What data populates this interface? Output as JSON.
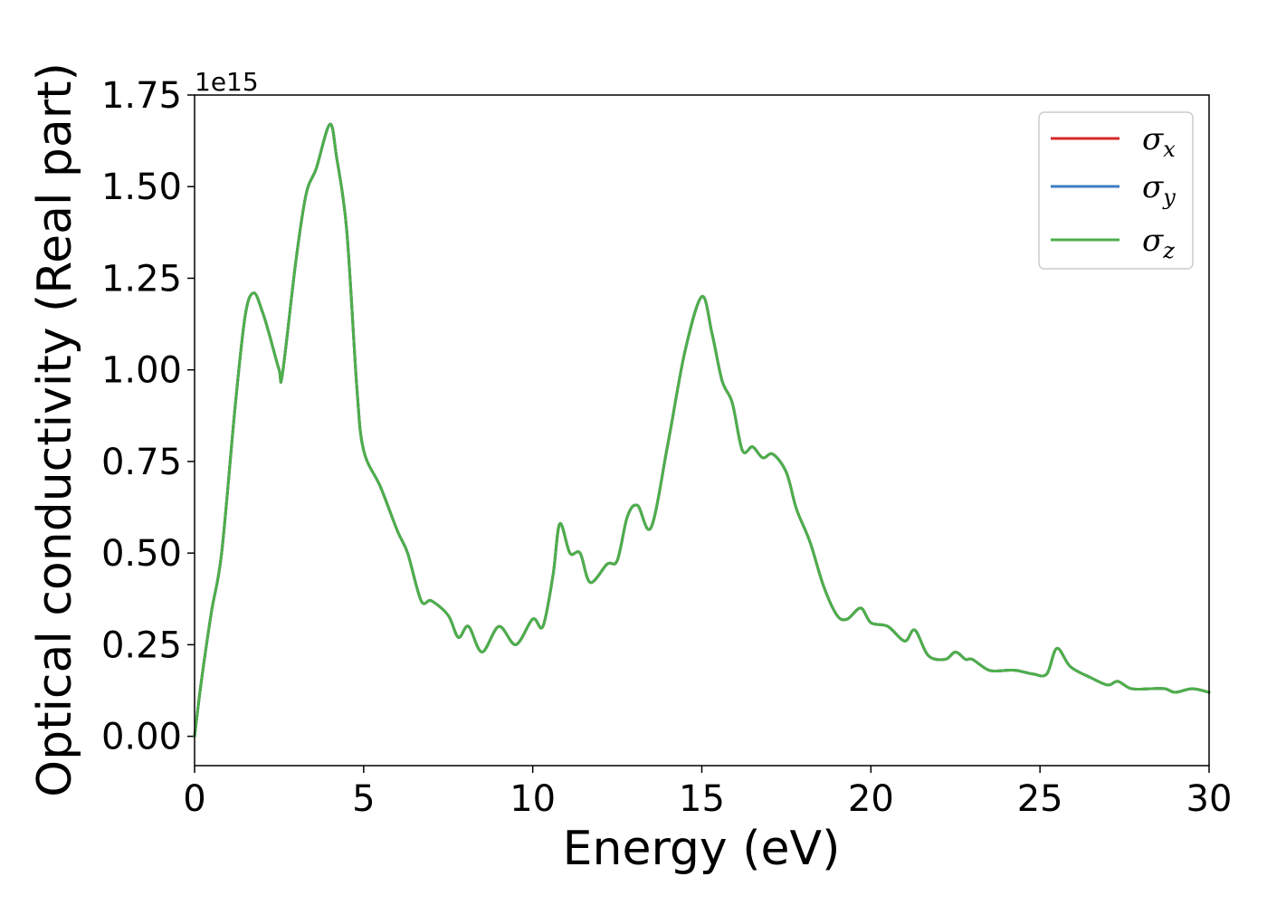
{
  "chart_data": {
    "type": "line",
    "title": "",
    "xlabel": "Energy (eV)",
    "ylabel": "Optical conductivity (Real part)",
    "y_offset_label": "1e15",
    "xlim": [
      0,
      30
    ],
    "ylim": [
      -0.08,
      1.75
    ],
    "xticks": [
      0,
      5,
      10,
      15,
      20,
      25,
      30
    ],
    "xtick_labels": [
      "0",
      "5",
      "10",
      "15",
      "20",
      "25",
      "30"
    ],
    "yticks": [
      0,
      0.25,
      0.5,
      0.75,
      1.0,
      1.25,
      1.5,
      1.75
    ],
    "ytick_labels": [
      "0.00",
      "0.25",
      "0.50",
      "0.75",
      "1.00",
      "1.25",
      "1.50",
      "1.75"
    ],
    "grid": false,
    "legend_position": "top-right",
    "x": [
      0,
      0.2,
      0.5,
      0.8,
      1.2,
      1.5,
      1.75,
      2.0,
      2.2,
      2.5,
      2.6,
      3.0,
      3.3,
      3.6,
      4.0,
      4.2,
      4.5,
      4.8,
      5.0,
      5.5,
      6.0,
      6.3,
      6.7,
      7.0,
      7.5,
      7.8,
      8.1,
      8.5,
      9.0,
      9.5,
      10.0,
      10.3,
      10.6,
      10.8,
      11.1,
      11.4,
      11.7,
      12.2,
      12.5,
      12.8,
      13.1,
      13.5,
      14.0,
      14.5,
      15.0,
      15.3,
      15.6,
      15.9,
      16.2,
      16.5,
      16.8,
      17.1,
      17.5,
      17.8,
      18.2,
      18.6,
      19.0,
      19.3,
      19.7,
      20.0,
      20.5,
      21.0,
      21.3,
      21.7,
      22.2,
      22.5,
      22.8,
      23.0,
      23.5,
      24.0,
      24.3,
      24.8,
      25.2,
      25.5,
      25.9,
      26.5,
      27.0,
      27.3,
      27.7,
      28.3,
      28.7,
      29.0,
      29.5,
      30.0
    ],
    "series": [
      {
        "name": "σ_x",
        "label_main": "σ",
        "label_sub": "x",
        "color": "#d62728",
        "values": [
          0.0,
          0.15,
          0.34,
          0.5,
          0.9,
          1.15,
          1.21,
          1.16,
          1.1,
          1.0,
          0.99,
          1.3,
          1.48,
          1.55,
          1.67,
          1.58,
          1.38,
          0.95,
          0.78,
          0.68,
          0.56,
          0.5,
          0.37,
          0.37,
          0.33,
          0.27,
          0.3,
          0.23,
          0.3,
          0.25,
          0.32,
          0.3,
          0.44,
          0.58,
          0.5,
          0.5,
          0.42,
          0.47,
          0.48,
          0.6,
          0.63,
          0.57,
          0.8,
          1.05,
          1.2,
          1.1,
          0.97,
          0.91,
          0.78,
          0.79,
          0.76,
          0.77,
          0.72,
          0.62,
          0.53,
          0.41,
          0.33,
          0.32,
          0.35,
          0.31,
          0.3,
          0.26,
          0.29,
          0.22,
          0.21,
          0.23,
          0.21,
          0.21,
          0.18,
          0.18,
          0.18,
          0.17,
          0.17,
          0.24,
          0.19,
          0.16,
          0.14,
          0.15,
          0.13,
          0.13,
          0.13,
          0.12,
          0.13,
          0.12
        ]
      },
      {
        "name": "σ_y",
        "label_main": "σ",
        "label_sub": "y",
        "color": "#3b7dbf",
        "values": [
          0.0,
          0.15,
          0.34,
          0.5,
          0.9,
          1.15,
          1.21,
          1.16,
          1.1,
          1.0,
          0.99,
          1.3,
          1.48,
          1.55,
          1.67,
          1.58,
          1.38,
          0.95,
          0.78,
          0.68,
          0.56,
          0.5,
          0.37,
          0.37,
          0.33,
          0.27,
          0.3,
          0.23,
          0.3,
          0.25,
          0.32,
          0.3,
          0.44,
          0.58,
          0.5,
          0.5,
          0.42,
          0.47,
          0.48,
          0.6,
          0.63,
          0.57,
          0.8,
          1.05,
          1.2,
          1.1,
          0.97,
          0.91,
          0.78,
          0.79,
          0.76,
          0.77,
          0.72,
          0.62,
          0.53,
          0.41,
          0.33,
          0.32,
          0.35,
          0.31,
          0.3,
          0.26,
          0.29,
          0.22,
          0.21,
          0.23,
          0.21,
          0.21,
          0.18,
          0.18,
          0.18,
          0.17,
          0.17,
          0.24,
          0.19,
          0.16,
          0.14,
          0.15,
          0.13,
          0.13,
          0.13,
          0.12,
          0.13,
          0.12
        ]
      },
      {
        "name": "σ_z",
        "label_main": "σ",
        "label_sub": "z",
        "color": "#4daf4a",
        "values": [
          0.0,
          0.15,
          0.34,
          0.5,
          0.9,
          1.15,
          1.21,
          1.16,
          1.1,
          1.0,
          0.99,
          1.3,
          1.48,
          1.55,
          1.67,
          1.58,
          1.38,
          0.95,
          0.78,
          0.68,
          0.56,
          0.5,
          0.37,
          0.37,
          0.33,
          0.27,
          0.3,
          0.23,
          0.3,
          0.25,
          0.32,
          0.3,
          0.44,
          0.58,
          0.5,
          0.5,
          0.42,
          0.47,
          0.48,
          0.6,
          0.63,
          0.57,
          0.8,
          1.05,
          1.2,
          1.1,
          0.97,
          0.91,
          0.78,
          0.79,
          0.76,
          0.77,
          0.72,
          0.62,
          0.53,
          0.41,
          0.33,
          0.32,
          0.35,
          0.31,
          0.3,
          0.26,
          0.29,
          0.22,
          0.21,
          0.23,
          0.21,
          0.21,
          0.18,
          0.18,
          0.18,
          0.17,
          0.17,
          0.24,
          0.19,
          0.16,
          0.14,
          0.15,
          0.13,
          0.13,
          0.13,
          0.12,
          0.13,
          0.12
        ]
      }
    ]
  }
}
